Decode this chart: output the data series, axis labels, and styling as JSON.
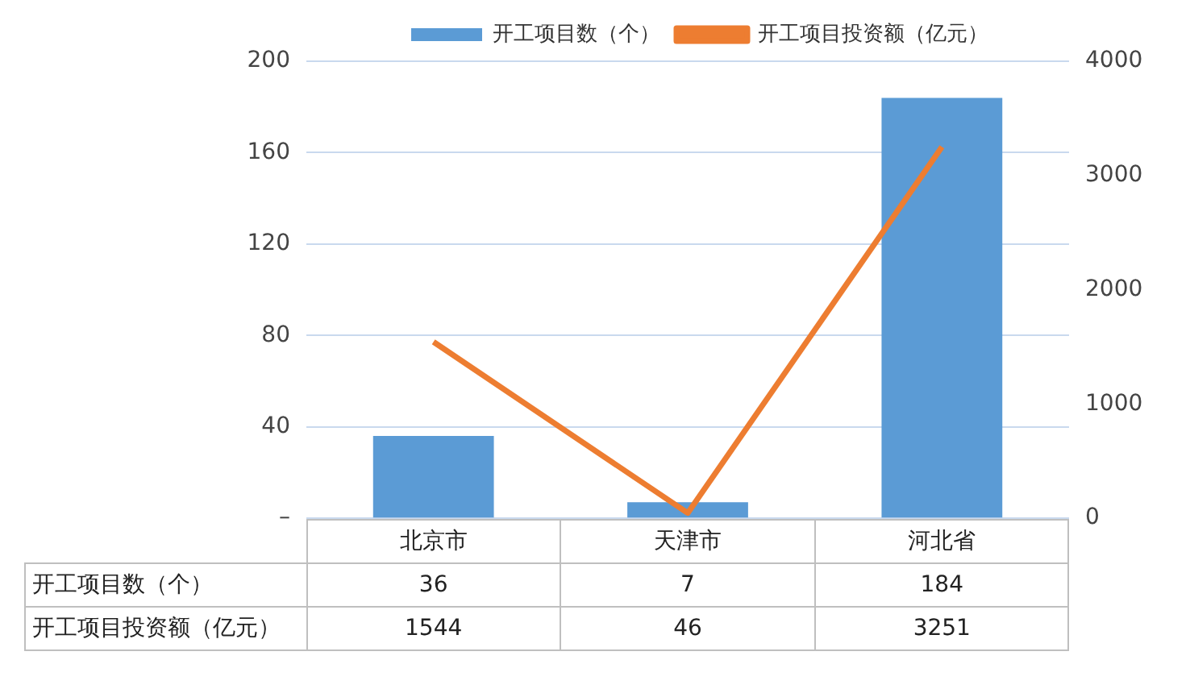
{
  "chart_data": {
    "type": "bar",
    "categories": [
      "北京市",
      "天津市",
      "河北省"
    ],
    "series": [
      {
        "name": "开工项目数（个）",
        "color": "#5b9bd5",
        "values": [
          36,
          7,
          184
        ]
      },
      {
        "name": "开工项目投资额（亿元）",
        "type": "line",
        "axis": "y2",
        "color": "#ed7d31",
        "values": [
          1544,
          46,
          3251
        ]
      }
    ],
    "ylim": [
      0,
      200
    ],
    "yticks": [
      {
        "value": 0,
        "label": "–"
      },
      40,
      80,
      120,
      160,
      200
    ],
    "y2lim": [
      0,
      4000
    ],
    "y2ticks": [
      0,
      1000,
      2000,
      3000,
      4000
    ],
    "grid": "y",
    "legend": "top",
    "marker": "none",
    "data_labels": true
  }
}
